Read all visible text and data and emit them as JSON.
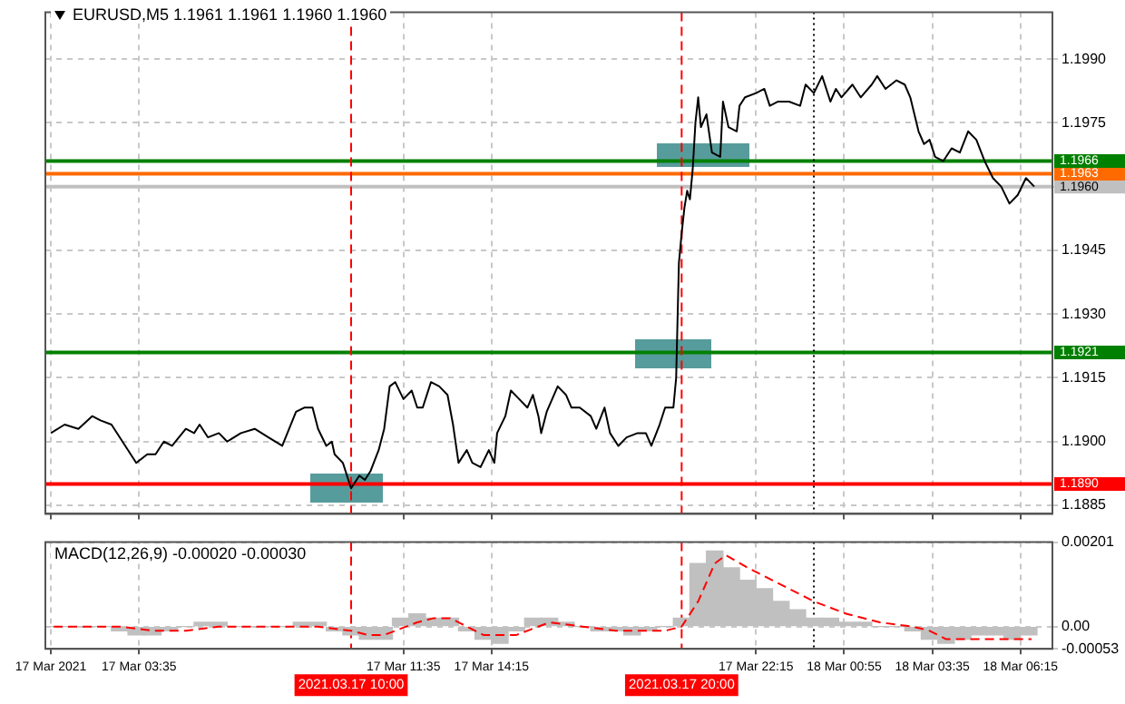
{
  "chart_data": [
    {
      "type": "line",
      "title": "EURUSD,M5 1.1961 1.1961 1.1960 1.1960",
      "xlim": [
        "2021-03-17T00:45",
        "2021-03-18T07:13"
      ],
      "xticks": [
        {
          "value": "2021-03-17T00:55",
          "label": null
        },
        {
          "value": "2021-03-17T03:35",
          "label": null
        },
        {
          "value": "2021-03-17T11:35",
          "label": null
        },
        {
          "value": "2021-03-17T14:15",
          "label": null
        },
        {
          "value": "2021-03-17T22:15",
          "label": null
        },
        {
          "value": "2021-03-18T00:55",
          "label": null
        },
        {
          "value": "2021-03-18T03:35",
          "label": null
        },
        {
          "value": "2021-03-18T06:15",
          "label": null
        }
      ],
      "ylim": [
        1.1883,
        1.2001
      ],
      "yticks": [
        1.1885,
        {
          "value": 1.19,
          "label": "1.1900"
        },
        1.1915,
        {
          "value": 1.193,
          "label": "1.1930"
        },
        1.1945,
        {
          "value": 1.196,
          "label": null
        },
        1.1975,
        {
          "value": 1.199,
          "label": "1.1990"
        }
      ],
      "tick_labels": "y",
      "grid": true,
      "series": [
        {
          "color": "#000000",
          "x": [
            "2021-03-17T00:55",
            "2021-03-17T01:20",
            "2021-03-17T01:45",
            "2021-03-17T02:10",
            "2021-03-17T02:25",
            "2021-03-17T02:45",
            "2021-03-17T03:05",
            "2021-03-17T03:30",
            "2021-03-17T03:50",
            "2021-03-17T04:05",
            "2021-03-17T04:20",
            "2021-03-17T04:35",
            "2021-03-17T05:00",
            "2021-03-17T05:15",
            "2021-03-17T05:25",
            "2021-03-17T05:40",
            "2021-03-17T06:00",
            "2021-03-17T06:15",
            "2021-03-17T06:40",
            "2021-03-17T07:05",
            "2021-03-17T07:30",
            "2021-03-17T07:55",
            "2021-03-17T08:20",
            "2021-03-17T08:35",
            "2021-03-17T08:50",
            "2021-03-17T09:00",
            "2021-03-17T09:15",
            "2021-03-17T09:25",
            "2021-03-17T09:30",
            "2021-03-17T09:45",
            "2021-03-17T09:55",
            "2021-03-17T10:00",
            "2021-03-17T10:15",
            "2021-03-17T10:25",
            "2021-03-17T10:35",
            "2021-03-17T10:50",
            "2021-03-17T11:00",
            "2021-03-17T11:10",
            "2021-03-17T11:20",
            "2021-03-17T11:35",
            "2021-03-17T11:50",
            "2021-03-17T12:00",
            "2021-03-17T12:10",
            "2021-03-17T12:25",
            "2021-03-17T12:40",
            "2021-03-17T12:55",
            "2021-03-17T13:05",
            "2021-03-17T13:15",
            "2021-03-17T13:30",
            "2021-03-17T13:40",
            "2021-03-17T13:55",
            "2021-03-17T14:10",
            "2021-03-17T14:20",
            "2021-03-17T14:25",
            "2021-03-17T14:40",
            "2021-03-17T14:50",
            "2021-03-17T15:05",
            "2021-03-17T15:20",
            "2021-03-17T15:30",
            "2021-03-17T15:40",
            "2021-03-17T15:45",
            "2021-03-17T15:55",
            "2021-03-17T16:15",
            "2021-03-17T16:30",
            "2021-03-17T16:40",
            "2021-03-17T16:55",
            "2021-03-17T17:15",
            "2021-03-17T17:25",
            "2021-03-17T17:40",
            "2021-03-17T17:50",
            "2021-03-17T18:05",
            "2021-03-17T18:20",
            "2021-03-17T18:40",
            "2021-03-17T18:55",
            "2021-03-17T19:05",
            "2021-03-17T19:20",
            "2021-03-17T19:30",
            "2021-03-17T19:45",
            "2021-03-17T19:50",
            "2021-03-17T19:55",
            "2021-03-17T20:00",
            "2021-03-17T20:05",
            "2021-03-17T20:10",
            "2021-03-17T20:15",
            "2021-03-17T20:20",
            "2021-03-17T20:25",
            "2021-03-17T20:30",
            "2021-03-17T20:35",
            "2021-03-17T20:45",
            "2021-03-17T20:55",
            "2021-03-17T21:10",
            "2021-03-17T21:15",
            "2021-03-17T21:25",
            "2021-03-17T21:40",
            "2021-03-17T21:45",
            "2021-03-17T21:55",
            "2021-03-17T22:15",
            "2021-03-17T22:30",
            "2021-03-17T22:40",
            "2021-03-17T22:55",
            "2021-03-17T23:15",
            "2021-03-17T23:35",
            "2021-03-17T23:45",
            "2021-03-18T00:00",
            "2021-03-18T00:15",
            "2021-03-18T00:30",
            "2021-03-18T00:40",
            "2021-03-18T00:50",
            "2021-03-18T01:10",
            "2021-03-18T01:25",
            "2021-03-18T01:45",
            "2021-03-18T01:55",
            "2021-03-18T02:10",
            "2021-03-18T02:30",
            "2021-03-18T02:45",
            "2021-03-18T02:55",
            "2021-03-18T03:10",
            "2021-03-18T03:20",
            "2021-03-18T03:30",
            "2021-03-18T03:40",
            "2021-03-18T03:55",
            "2021-03-18T04:10",
            "2021-03-18T04:25",
            "2021-03-18T04:40",
            "2021-03-18T04:55",
            "2021-03-18T05:10",
            "2021-03-18T05:25",
            "2021-03-18T05:40",
            "2021-03-18T05:55",
            "2021-03-18T06:10",
            "2021-03-18T06:25",
            "2021-03-18T06:40"
          ],
          "values": [
            1.1902,
            1.1904,
            1.1903,
            1.1906,
            1.1905,
            1.1904,
            1.19,
            1.1895,
            1.1897,
            1.1897,
            1.19,
            1.1899,
            1.1903,
            1.1902,
            1.1904,
            1.1901,
            1.1902,
            1.19,
            1.1902,
            1.1903,
            1.1901,
            1.1899,
            1.1907,
            1.1908,
            1.1908,
            1.1903,
            1.1899,
            1.19,
            1.1897,
            1.1895,
            1.1891,
            1.1889,
            1.1892,
            1.1891,
            1.1893,
            1.1898,
            1.1903,
            1.1913,
            1.1914,
            1.191,
            1.1912,
            1.1908,
            1.1908,
            1.1914,
            1.1913,
            1.1911,
            1.1904,
            1.1895,
            1.1898,
            1.1895,
            1.1894,
            1.1898,
            1.1895,
            1.1902,
            1.1906,
            1.1912,
            1.191,
            1.1908,
            1.1911,
            1.1906,
            1.1902,
            1.1907,
            1.1913,
            1.1911,
            1.1908,
            1.1908,
            1.1906,
            1.1903,
            1.1908,
            1.1902,
            1.1899,
            1.1901,
            1.1902,
            1.1902,
            1.1899,
            1.1904,
            1.1908,
            1.1908,
            1.1915,
            1.1942,
            1.1949,
            1.1955,
            1.1959,
            1.1957,
            1.1964,
            1.1975,
            1.1981,
            1.1974,
            1.1977,
            1.1968,
            1.1967,
            1.198,
            1.1974,
            1.1973,
            1.1979,
            1.1981,
            1.1982,
            1.1983,
            1.1979,
            1.198,
            1.198,
            1.1979,
            1.1984,
            1.1982,
            1.1986,
            1.198,
            1.1983,
            1.1981,
            1.1984,
            1.1981,
            1.1984,
            1.1986,
            1.1983,
            1.1985,
            1.1984,
            1.1981,
            1.1973,
            1.197,
            1.1971,
            1.1967,
            1.1966,
            1.1969,
            1.1968,
            1.1973,
            1.1971,
            1.1966,
            1.1962,
            1.196,
            1.1956,
            1.1958,
            1.1962,
            1.196
          ]
        }
      ],
      "ref_lines": [
        {
          "axis": "y",
          "value": 1.1966,
          "label": "1.1966",
          "color": "#008000"
        },
        {
          "axis": "y",
          "value": 1.1963,
          "label": "1.1963",
          "color": "#ff6a00"
        },
        {
          "axis": "y",
          "value": 1.196,
          "label": "1.1960",
          "color": "#c0c0c0"
        },
        {
          "axis": "y",
          "value": 1.1921,
          "label": "1.1921",
          "color": "#008000"
        },
        {
          "axis": "y",
          "value": 1.189,
          "label": "1.1890",
          "color": "#ff0000"
        },
        {
          "axis": "x",
          "value": "2021-03-17T10:00",
          "color": "#ff0000",
          "line_style": "dashed"
        },
        {
          "axis": "x",
          "value": "2021-03-17T20:00",
          "color": "#ff0000",
          "line_style": "dashed"
        },
        {
          "axis": "x",
          "value": "2021-03-18T00:00",
          "color": "#000000",
          "line_style": "dotted"
        }
      ]
    },
    {
      "type": "bar",
      "title": "MACD(12,26,9) -0.00020 -0.00030",
      "xlim": [
        "2021-03-17T00:45",
        "2021-03-18T07:13"
      ],
      "xticks": [
        {
          "value": "2021-03-17T00:55",
          "label": "17 Mar 2021"
        },
        {
          "value": "2021-03-17T03:35",
          "label": "17 Mar 03:35"
        },
        {
          "value": "2021-03-17T11:35",
          "label": "17 Mar 11:35"
        },
        {
          "value": "2021-03-17T14:15",
          "label": "17 Mar 14:15"
        },
        {
          "value": "2021-03-17T22:15",
          "label": "17 Mar 22:15"
        },
        {
          "value": "2021-03-18T00:55",
          "label": "18 Mar 00:55"
        },
        {
          "value": "2021-03-18T03:35",
          "label": "18 Mar 03:35"
        },
        {
          "value": "2021-03-18T06:15",
          "label": "18 Mar 06:15"
        }
      ],
      "ylim": [
        -0.00053,
        0.00201
      ],
      "yticks": [
        {
          "value": -0.00053,
          "label": "-0.00053"
        },
        {
          "value": 0,
          "label": "0.00"
        },
        {
          "value": 0.00201,
          "label": "0.00201"
        }
      ],
      "grid": true,
      "series": [
        {
          "color": "#c0c0c0",
          "x": [
            "2021-03-17T01:00",
            "2021-03-17T01:30",
            "2021-03-17T02:00",
            "2021-03-17T02:30",
            "2021-03-17T03:00",
            "2021-03-17T03:30",
            "2021-03-17T04:00",
            "2021-03-17T04:30",
            "2021-03-17T05:00",
            "2021-03-17T05:30",
            "2021-03-17T06:00",
            "2021-03-17T06:30",
            "2021-03-17T07:00",
            "2021-03-17T07:30",
            "2021-03-17T08:00",
            "2021-03-17T08:30",
            "2021-03-17T09:00",
            "2021-03-17T09:30",
            "2021-03-17T10:00",
            "2021-03-17T10:30",
            "2021-03-17T11:00",
            "2021-03-17T11:30",
            "2021-03-17T12:00",
            "2021-03-17T12:30",
            "2021-03-17T13:00",
            "2021-03-17T13:30",
            "2021-03-17T14:00",
            "2021-03-17T14:30",
            "2021-03-17T15:00",
            "2021-03-17T15:30",
            "2021-03-17T16:00",
            "2021-03-17T16:30",
            "2021-03-17T17:00",
            "2021-03-17T17:30",
            "2021-03-17T18:00",
            "2021-03-17T18:30",
            "2021-03-17T19:00",
            "2021-03-17T19:30",
            "2021-03-17T20:00",
            "2021-03-17T20:30",
            "2021-03-17T21:00",
            "2021-03-17T21:30",
            "2021-03-17T22:00",
            "2021-03-17T22:30",
            "2021-03-17T23:00",
            "2021-03-17T23:30",
            "2021-03-18T00:00",
            "2021-03-18T00:30",
            "2021-03-18T01:00",
            "2021-03-18T01:30",
            "2021-03-18T02:00",
            "2021-03-18T02:30",
            "2021-03-18T03:00",
            "2021-03-18T03:30",
            "2021-03-18T04:00",
            "2021-03-18T04:30",
            "2021-03-18T05:00",
            "2021-03-18T05:30",
            "2021-03-18T06:00",
            "2021-03-18T06:30"
          ],
          "values": [
            0,
            0,
            0,
            0,
            -0.0001,
            -0.0002,
            -0.0002,
            -0.0001,
            0,
            0.0001,
            0.0001,
            0,
            0,
            0,
            0,
            0.0001,
            0.0001,
            -0.0001,
            -0.0002,
            -0.0003,
            -0.0003,
            0.0002,
            0.0003,
            0.0002,
            0.0002,
            -0.0001,
            -0.0003,
            -0.0004,
            -0.0001,
            0.0002,
            0.0002,
            0.0001,
            0,
            -0.0001,
            -0.0001,
            -0.0002,
            -0.0001,
            0,
            0.0002,
            0.0015,
            0.0018,
            0.0014,
            0.0011,
            0.0009,
            0.0006,
            0.0004,
            0.0002,
            0.0002,
            0.0001,
            0.0001,
            0,
            0,
            -0.0001,
            -0.0003,
            -0.0004,
            -0.0003,
            -0.0002,
            -0.0002,
            -0.0003,
            -0.0002
          ]
        },
        {
          "type": "line",
          "color": "#ff0000",
          "line_style": "dashed",
          "x": [
            "2021-03-17T01:00",
            "2021-03-17T02:00",
            "2021-03-17T03:00",
            "2021-03-17T04:00",
            "2021-03-17T05:00",
            "2021-03-17T06:00",
            "2021-03-17T07:00",
            "2021-03-17T08:00",
            "2021-03-17T09:00",
            "2021-03-17T10:00",
            "2021-03-17T10:30",
            "2021-03-17T11:00",
            "2021-03-17T12:00",
            "2021-03-17T12:30",
            "2021-03-17T13:00",
            "2021-03-17T13:30",
            "2021-03-17T14:00",
            "2021-03-17T14:30",
            "2021-03-17T15:00",
            "2021-03-17T16:00",
            "2021-03-17T17:00",
            "2021-03-17T18:00",
            "2021-03-17T19:00",
            "2021-03-17T19:30",
            "2021-03-17T20:00",
            "2021-03-17T20:30",
            "2021-03-17T21:00",
            "2021-03-17T21:20",
            "2021-03-17T22:00",
            "2021-03-17T23:00",
            "2021-03-18T00:00",
            "2021-03-18T01:00",
            "2021-03-18T02:00",
            "2021-03-18T03:00",
            "2021-03-18T03:30",
            "2021-03-18T04:00",
            "2021-03-18T04:30",
            "2021-03-18T05:00",
            "2021-03-18T06:00",
            "2021-03-18T06:35"
          ],
          "values": [
            0,
            0,
            0,
            -0.0001,
            -0.0001,
            0,
            0,
            0,
            0,
            -0.0001,
            -0.0002,
            -0.0002,
            0.0001,
            0.0002,
            0.0002,
            0,
            -0.0002,
            -0.0002,
            -0.0002,
            0.0001,
            0,
            -0.0001,
            -0.0001,
            -0.0001,
            0,
            0.0006,
            0.0015,
            0.0017,
            0.0014,
            0.001,
            0.0006,
            0.0003,
            0.0001,
            0,
            -0.0001,
            -0.0003,
            -0.0003,
            -0.0003,
            -0.0003,
            -0.0003
          ]
        }
      ],
      "ref_lines": [
        {
          "axis": "x",
          "value": "2021-03-17T10:00",
          "label": "2021.03.17 10:00",
          "color": "#ff0000",
          "line_style": "dashed"
        },
        {
          "axis": "x",
          "value": "2021-03-17T20:00",
          "label": "2021.03.17 20:00",
          "color": "#ff0000",
          "line_style": "dashed"
        },
        {
          "axis": "x",
          "value": "2021-03-18T00:00",
          "color": "#000000",
          "line_style": "dotted"
        }
      ]
    }
  ]
}
